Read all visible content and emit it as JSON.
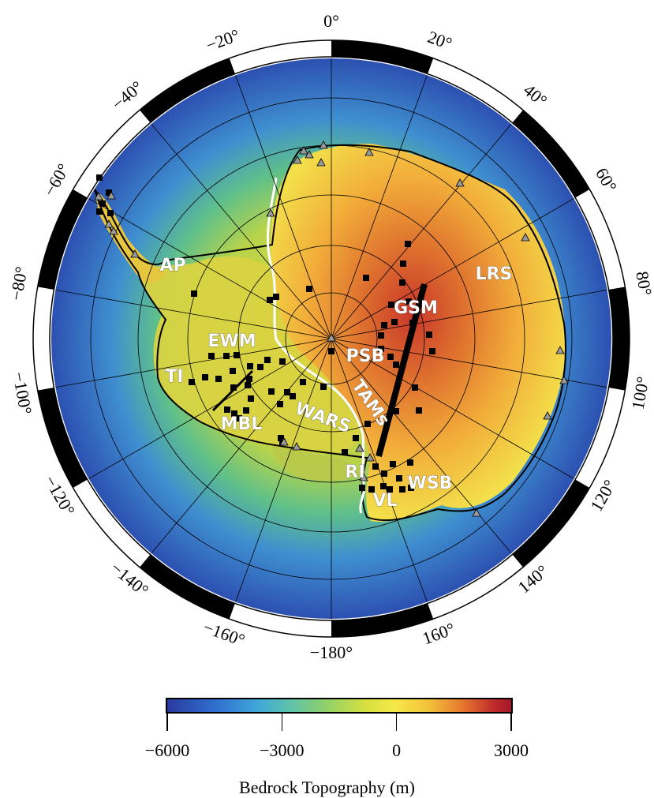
{
  "map": {
    "longitude_labels": [
      {
        "lon": 0,
        "text": "0°"
      },
      {
        "lon": 20,
        "text": "20°"
      },
      {
        "lon": 40,
        "text": "40°"
      },
      {
        "lon": 60,
        "text": "60°"
      },
      {
        "lon": 80,
        "text": "80°"
      },
      {
        "lon": 100,
        "text": "100°"
      },
      {
        "lon": 120,
        "text": "120°"
      },
      {
        "lon": 140,
        "text": "140°"
      },
      {
        "lon": 160,
        "text": "160°"
      },
      {
        "lon": -180,
        "text": "−180°"
      },
      {
        "lon": -160,
        "text": "−160°"
      },
      {
        "lon": -140,
        "text": "−140°"
      },
      {
        "lon": -120,
        "text": "−120°"
      },
      {
        "lon": -100,
        "text": "−100°"
      },
      {
        "lon": -80,
        "text": "−80°"
      },
      {
        "lon": -60,
        "text": "−60°"
      },
      {
        "lon": -40,
        "text": "−40°"
      },
      {
        "lon": -20,
        "text": "−20°"
      }
    ],
    "regions": [
      "AP",
      "EWM",
      "TI",
      "MBL",
      "WARS",
      "GSM",
      "PSB",
      "LRS",
      "TAMs",
      "RI",
      "WSB",
      "VL"
    ],
    "projection": "south polar stereographic",
    "meridian_spacing_deg": 20
  },
  "colorbar": {
    "title": "Bedrock Topography (m)",
    "min": -6000,
    "max": 3000,
    "ticks": [
      {
        "value": -6000,
        "label": "−6000"
      },
      {
        "value": -3000,
        "label": "−3000"
      },
      {
        "value": 0,
        "label": "0"
      },
      {
        "value": 3000,
        "label": "3000"
      }
    ],
    "colors": [
      "#2a3a9e",
      "#3fa6d9",
      "#8fd06a",
      "#f6e84a",
      "#e5762e",
      "#a3172a"
    ]
  },
  "legend_symbols": {
    "station_square": "black-square-icon",
    "station_triangle": "gray-triangle-icon"
  }
}
